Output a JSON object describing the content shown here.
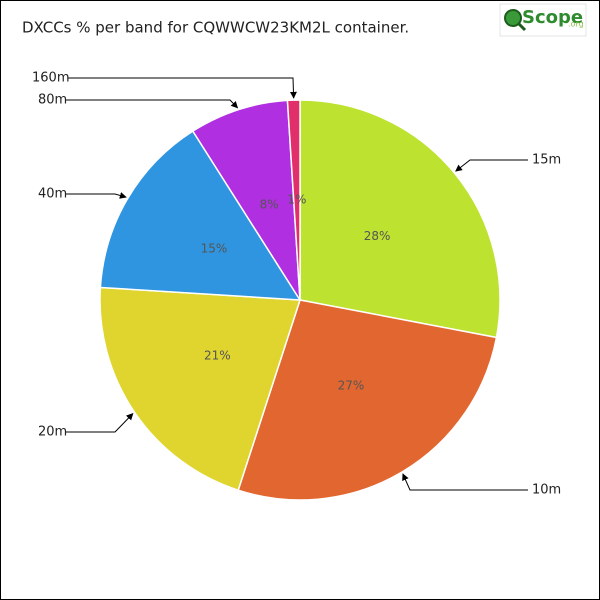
{
  "logo": {
    "text": "Scope",
    "suffix": ".org"
  },
  "chart_data": {
    "type": "pie",
    "title": "DXCCs % per band for CQWWCW23KM2L container.",
    "categories": [
      "15m",
      "10m",
      "20m",
      "40m",
      "80m",
      "160m"
    ],
    "values": [
      28,
      27,
      21,
      15,
      8,
      1
    ],
    "value_labels": [
      "28%",
      "27%",
      "21%",
      "15%",
      "8%",
      "1%"
    ],
    "colors": [
      "#bde22f",
      "#e2662f",
      "#e0d52f",
      "#2f95e0",
      "#b02fe0",
      "#e02f6a"
    ]
  }
}
